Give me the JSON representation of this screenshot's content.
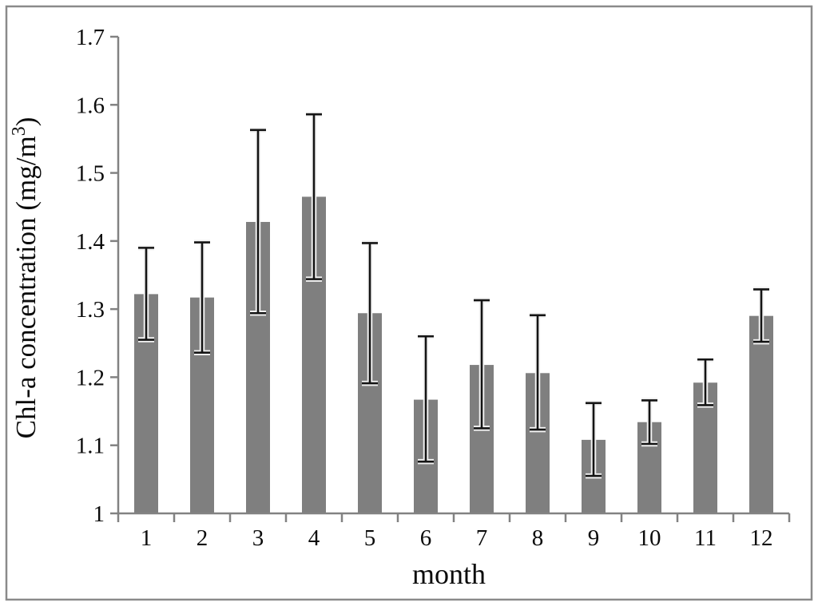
{
  "figure": {
    "background_color": "#ffffff",
    "frame_color": "#8a8a8a"
  },
  "chart_data": {
    "type": "bar",
    "title": "",
    "xlabel": "month",
    "ylabel": "Chl-a concentration (mg/m³)",
    "ylabel_parts": {
      "prefix": "Chl-a concentration (mg/m",
      "superscript": "3",
      "suffix": ")"
    },
    "categories": [
      "1",
      "2",
      "3",
      "4",
      "5",
      "6",
      "7",
      "8",
      "9",
      "10",
      "11",
      "12"
    ],
    "series": [
      {
        "name": "Chl-a concentration",
        "values": [
          1.322,
          1.317,
          1.428,
          1.465,
          1.294,
          1.167,
          1.218,
          1.206,
          1.108,
          1.134,
          1.192,
          1.29
        ],
        "error_upper_abs": [
          1.39,
          1.398,
          1.563,
          1.586,
          1.397,
          1.26,
          1.313,
          1.291,
          1.162,
          1.166,
          1.226,
          1.329
        ],
        "error_lower_abs": [
          1.255,
          1.236,
          1.294,
          1.344,
          1.191,
          1.076,
          1.125,
          1.123,
          1.055,
          1.102,
          1.159,
          1.252
        ]
      }
    ],
    "ylim": [
      1.0,
      1.7
    ],
    "ytick_step": 0.1,
    "ytick_labels": [
      "1",
      "1.1",
      "1.2",
      "1.3",
      "1.4",
      "1.5",
      "1.6",
      "1.7"
    ],
    "grid": false,
    "legend_position": "none",
    "bar_color": "#7f7f7f",
    "error_bar_color": "#141414",
    "error_bar_halo_color": "#f2f2f2",
    "axis_color": "#828282"
  }
}
